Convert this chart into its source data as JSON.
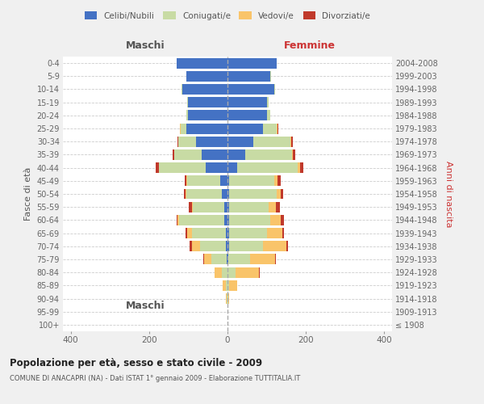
{
  "age_groups": [
    "100+",
    "95-99",
    "90-94",
    "85-89",
    "80-84",
    "75-79",
    "70-74",
    "65-69",
    "60-64",
    "55-59",
    "50-54",
    "45-49",
    "40-44",
    "35-39",
    "30-34",
    "25-29",
    "20-24",
    "15-19",
    "10-14",
    "5-9",
    "0-4"
  ],
  "birth_years": [
    "≤ 1908",
    "1909-1913",
    "1914-1918",
    "1919-1923",
    "1924-1928",
    "1929-1933",
    "1934-1938",
    "1939-1943",
    "1944-1948",
    "1949-1953",
    "1954-1958",
    "1959-1963",
    "1964-1968",
    "1969-1973",
    "1974-1978",
    "1979-1983",
    "1984-1988",
    "1989-1993",
    "1994-1998",
    "1999-2003",
    "2004-2008"
  ],
  "males": {
    "celibi": [
      0,
      0,
      0,
      0,
      0,
      2,
      5,
      5,
      8,
      8,
      15,
      18,
      55,
      65,
      80,
      105,
      100,
      100,
      115,
      105,
      130
    ],
    "coniugati": [
      0,
      0,
      2,
      4,
      15,
      40,
      65,
      85,
      115,
      80,
      90,
      85,
      120,
      70,
      45,
      15,
      5,
      2,
      2,
      0,
      0
    ],
    "vedovi": [
      0,
      0,
      2,
      8,
      18,
      18,
      20,
      12,
      5,
      3,
      2,
      2,
      0,
      0,
      0,
      2,
      0,
      0,
      0,
      0,
      0
    ],
    "divorziati": [
      0,
      0,
      0,
      0,
      0,
      2,
      6,
      5,
      2,
      8,
      5,
      5,
      8,
      5,
      2,
      0,
      0,
      0,
      0,
      0,
      0
    ]
  },
  "females": {
    "nubili": [
      0,
      0,
      0,
      0,
      0,
      2,
      5,
      5,
      5,
      5,
      5,
      5,
      25,
      45,
      65,
      90,
      100,
      100,
      120,
      110,
      125
    ],
    "coniugate": [
      0,
      0,
      2,
      5,
      20,
      55,
      85,
      95,
      105,
      100,
      120,
      115,
      155,
      120,
      95,
      35,
      10,
      5,
      2,
      2,
      0
    ],
    "vedove": [
      0,
      0,
      2,
      20,
      60,
      65,
      60,
      40,
      25,
      18,
      10,
      8,
      5,
      2,
      2,
      2,
      0,
      0,
      0,
      0,
      0
    ],
    "divorziate": [
      0,
      0,
      0,
      0,
      2,
      2,
      5,
      5,
      10,
      10,
      8,
      8,
      8,
      5,
      5,
      2,
      0,
      0,
      0,
      0,
      0
    ]
  },
  "colors": {
    "celibi_nubili": "#4472c4",
    "coniugati": "#c8dba4",
    "vedovi": "#f9c46a",
    "divorziati": "#c0392b"
  },
  "xlim": 420,
  "title": "Popolazione per età, sesso e stato civile - 2009",
  "subtitle": "COMUNE DI ANACAPRI (NA) - Dati ISTAT 1° gennaio 2009 - Elaborazione TUTTITALIA.IT",
  "ylabel_left": "Fasce di età",
  "ylabel_right": "Anni di nascita",
  "xlabel_left": "Maschi",
  "xlabel_right": "Femmine",
  "bg_color": "#f0f0f0",
  "plot_bg_color": "#ffffff"
}
